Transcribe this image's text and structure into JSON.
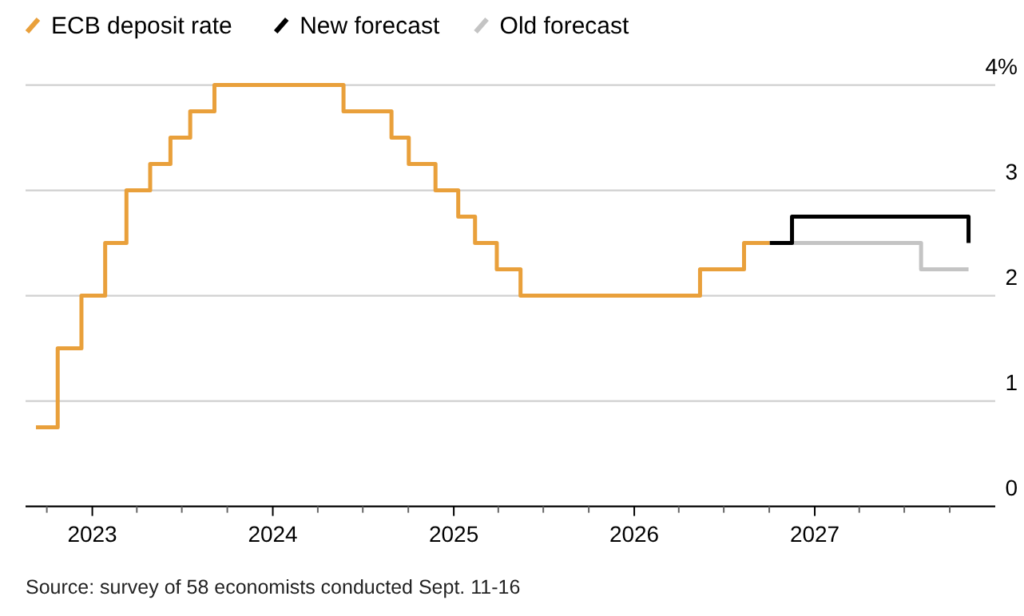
{
  "chart_data": {
    "type": "step",
    "annotations": [
      "Source: survey of 58 economists conducted Sept. 11-16"
    ],
    "xlim": [
      "2022-08-19",
      "2028-01-01"
    ],
    "xticks": [
      {
        "value": "2022-10-01",
        "label": null
      },
      {
        "value": "2023-01-01",
        "label": "2023"
      },
      {
        "value": "2023-04-01",
        "label": null
      },
      {
        "value": "2023-07-01",
        "label": null
      },
      {
        "value": "2023-10-01",
        "label": null
      },
      {
        "value": "2024-01-01",
        "label": "2024"
      },
      {
        "value": "2024-04-01",
        "label": null
      },
      {
        "value": "2024-07-01",
        "label": null
      },
      {
        "value": "2024-10-01",
        "label": null
      },
      {
        "value": "2025-01-01",
        "label": "2025"
      },
      {
        "value": "2025-04-01",
        "label": null
      },
      {
        "value": "2025-07-01",
        "label": null
      },
      {
        "value": "2025-10-01",
        "label": null
      },
      {
        "value": "2026-01-01",
        "label": "2026"
      },
      {
        "value": "2026-04-01",
        "label": null
      },
      {
        "value": "2026-07-01",
        "label": null
      },
      {
        "value": "2026-10-01",
        "label": null
      },
      {
        "value": "2027-01-01",
        "label": "2027"
      },
      {
        "value": "2027-04-01",
        "label": null
      },
      {
        "value": "2027-07-01",
        "label": null
      },
      {
        "value": "2027-10-01",
        "label": null
      }
    ],
    "ylim": [
      0,
      4
    ],
    "yticks": [
      0,
      1,
      2,
      3,
      {
        "value": 4,
        "label": "4%"
      }
    ],
    "grid": "y",
    "legend": "top left",
    "line_style": "solid",
    "series": [
      {
        "name": "ECB deposit rate",
        "color": "#e9a03b",
        "x": [
          "2022-09-09",
          "2022-10-23",
          "2022-12-10",
          "2023-01-27",
          "2023-03-11",
          "2023-04-28",
          "2023-06-08",
          "2023-07-18",
          "2023-09-05",
          "2024-05-23",
          "2024-08-28",
          "2024-10-02",
          "2024-11-25",
          "2025-01-10",
          "2025-02-13",
          "2025-03-29",
          "2025-05-16",
          "2026-05-14",
          "2026-08-11",
          "2026-10-02"
        ],
        "values": [
          0.75,
          1.5,
          2,
          2.5,
          3,
          3.25,
          3.5,
          3.75,
          4,
          3.75,
          3.5,
          3.25,
          3,
          2.75,
          2.5,
          2.25,
          2,
          2.25,
          2.5,
          2.5
        ]
      },
      {
        "name": "Old forecast",
        "color": "#c4c4c4",
        "x": [
          "2026-11-16",
          "2027-08-04",
          "2027-11-08"
        ],
        "values": [
          2.5,
          2.25,
          2.25
        ]
      },
      {
        "name": "New forecast",
        "color": "#000000",
        "x": [
          "2026-10-02",
          "2026-11-16",
          "2027-11-08"
        ],
        "values": [
          2.5,
          2.75,
          2.5
        ]
      }
    ]
  }
}
